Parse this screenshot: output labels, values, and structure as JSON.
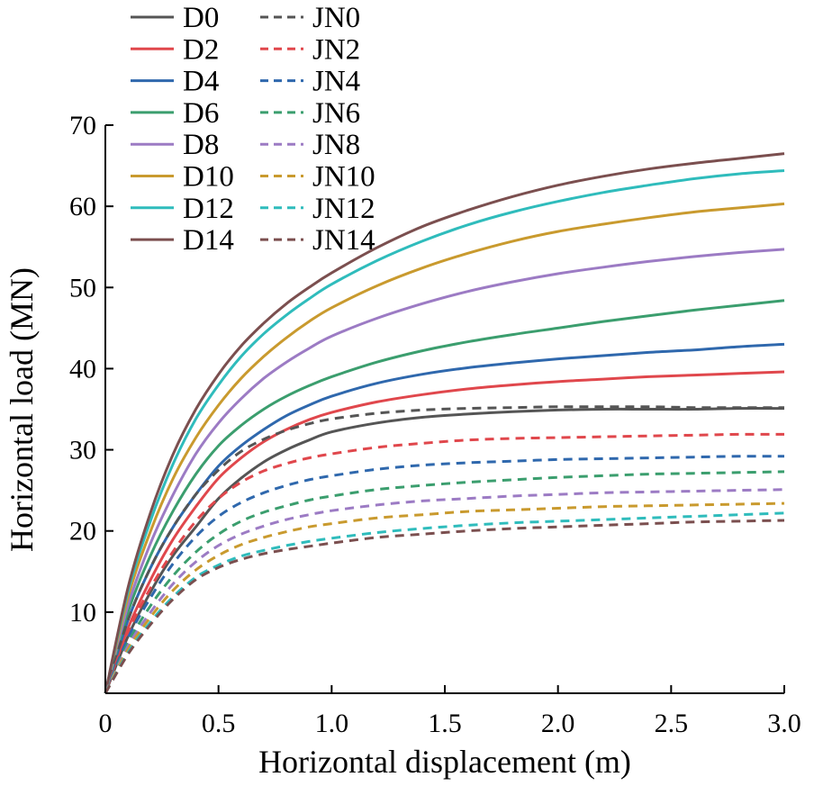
{
  "chart_data": {
    "type": "line",
    "title": "",
    "xlabel": "Horizontal displacement (m)",
    "ylabel": "Horizontal load (MN)",
    "xlim": [
      0,
      3.0
    ],
    "ylim": [
      0,
      70
    ],
    "x_ticks": [
      "0",
      "0.5",
      "1.0",
      "1.5",
      "2.0",
      "2.5",
      "3.0"
    ],
    "y_ticks": [
      "10",
      "20",
      "30",
      "40",
      "50",
      "60",
      "70"
    ],
    "grid": false,
    "legend_position": "top-left",
    "x": [
      0,
      0.1,
      0.2,
      0.3,
      0.4,
      0.5,
      0.6,
      0.7,
      0.8,
      0.9,
      1.0,
      1.2,
      1.4,
      1.6,
      1.8,
      2.0,
      2.2,
      2.4,
      2.6,
      2.8,
      3.0
    ],
    "series": [
      {
        "name": "D0",
        "color": "#555555",
        "dash": "solid",
        "values": [
          0,
          7,
          12.5,
          17,
          20.5,
          24,
          26.5,
          28.5,
          30,
          31.2,
          32.2,
          33.3,
          34.0,
          34.4,
          34.7,
          34.9,
          35.0,
          35.0,
          35.0,
          35.1,
          35.1
        ]
      },
      {
        "name": "D2",
        "color": "#e0474c",
        "dash": "solid",
        "values": [
          0,
          8,
          14,
          19,
          23,
          26.5,
          29,
          31,
          32.5,
          33.7,
          34.6,
          35.9,
          36.8,
          37.5,
          38.0,
          38.4,
          38.7,
          39.0,
          39.2,
          39.4,
          39.6
        ]
      },
      {
        "name": "D4",
        "color": "#2f68ad",
        "dash": "solid",
        "values": [
          0,
          9,
          15.5,
          20.5,
          24.5,
          28,
          30.5,
          32.5,
          34.2,
          35.5,
          36.6,
          38.2,
          39.3,
          40.1,
          40.7,
          41.2,
          41.6,
          42.0,
          42.3,
          42.7,
          43.0
        ]
      },
      {
        "name": "D6",
        "color": "#3b9e6e",
        "dash": "solid",
        "values": [
          0,
          10,
          17,
          22.5,
          27,
          30.5,
          33,
          35,
          36.6,
          37.9,
          39.0,
          40.8,
          42.2,
          43.3,
          44.2,
          45.0,
          45.8,
          46.5,
          47.2,
          47.8,
          48.4
        ]
      },
      {
        "name": "D8",
        "color": "#9c7bc4",
        "dash": "solid",
        "values": [
          0,
          10.8,
          18.5,
          24.5,
          29.5,
          33.3,
          36.3,
          38.8,
          40.8,
          42.5,
          44.0,
          46.2,
          48.0,
          49.5,
          50.7,
          51.7,
          52.5,
          53.2,
          53.8,
          54.3,
          54.7
        ]
      },
      {
        "name": "D10",
        "color": "#c99a2e",
        "dash": "solid",
        "values": [
          0,
          11.8,
          20,
          26.5,
          31.5,
          35.5,
          38.8,
          41.5,
          43.8,
          45.8,
          47.5,
          50.2,
          52.4,
          54.2,
          55.7,
          56.9,
          57.8,
          58.6,
          59.3,
          59.8,
          60.3
        ]
      },
      {
        "name": "D12",
        "color": "#2fbcbc",
        "dash": "solid",
        "values": [
          0,
          12.5,
          21.3,
          28.3,
          33.8,
          38,
          41.5,
          44.3,
          46.6,
          48.6,
          50.4,
          53.3,
          55.7,
          57.7,
          59.3,
          60.6,
          61.7,
          62.6,
          63.4,
          64.0,
          64.4
        ]
      },
      {
        "name": "D14",
        "color": "#7b4f4f",
        "dash": "solid",
        "values": [
          0,
          13,
          22.3,
          29.5,
          35,
          39.3,
          42.8,
          45.6,
          48,
          50,
          51.8,
          54.9,
          57.5,
          59.5,
          61.2,
          62.6,
          63.7,
          64.6,
          65.3,
          65.9,
          66.5
        ]
      },
      {
        "name": "JN0",
        "color": "#555555",
        "dash": "dashed",
        "values": [
          0,
          9,
          15.5,
          20.5,
          24.5,
          27.5,
          29.8,
          31.3,
          32.4,
          33.2,
          33.8,
          34.5,
          34.9,
          35.1,
          35.2,
          35.3,
          35.3,
          35.3,
          35.2,
          35.2,
          35.2
        ]
      },
      {
        "name": "JN2",
        "color": "#e0474c",
        "dash": "dashed",
        "values": [
          0,
          7.5,
          13,
          17.5,
          21.2,
          24,
          26,
          27.4,
          28.3,
          29.0,
          29.5,
          30.3,
          30.8,
          31.2,
          31.4,
          31.5,
          31.6,
          31.7,
          31.8,
          31.9,
          31.9
        ]
      },
      {
        "name": "JN4",
        "color": "#2f68ad",
        "dash": "dashed",
        "values": [
          0,
          6.8,
          11.8,
          16,
          19.3,
          21.8,
          23.5,
          24.7,
          25.6,
          26.3,
          26.8,
          27.6,
          28.1,
          28.4,
          28.6,
          28.8,
          28.9,
          29.0,
          29.1,
          29.2,
          29.2
        ]
      },
      {
        "name": "JN6",
        "color": "#3b9e6e",
        "dash": "dashed",
        "values": [
          0,
          6.2,
          10.8,
          14.5,
          17.4,
          19.6,
          21.2,
          22.3,
          23.1,
          23.8,
          24.3,
          25.1,
          25.6,
          26.0,
          26.3,
          26.6,
          26.8,
          27.0,
          27.1,
          27.2,
          27.3
        ]
      },
      {
        "name": "JN8",
        "color": "#9c7bc4",
        "dash": "dashed",
        "values": [
          0,
          5.8,
          10,
          13.5,
          16.2,
          18.2,
          19.6,
          20.6,
          21.4,
          22.0,
          22.5,
          23.2,
          23.7,
          24.0,
          24.3,
          24.5,
          24.7,
          24.8,
          24.9,
          25.0,
          25.1
        ]
      },
      {
        "name": "JN10",
        "color": "#c99a2e",
        "dash": "dashed",
        "values": [
          0,
          5.4,
          9.4,
          12.7,
          15.2,
          17,
          18.3,
          19.2,
          19.9,
          20.5,
          20.9,
          21.6,
          22.0,
          22.4,
          22.6,
          22.8,
          23.0,
          23.1,
          23.2,
          23.3,
          23.4
        ]
      },
      {
        "name": "JN12",
        "color": "#2fbcbc",
        "dash": "dashed",
        "values": [
          0,
          5,
          8.8,
          11.9,
          14.3,
          15.8,
          16.9,
          17.6,
          18.2,
          18.7,
          19.1,
          19.8,
          20.3,
          20.7,
          21.0,
          21.2,
          21.4,
          21.6,
          21.8,
          22.0,
          22.2
        ]
      },
      {
        "name": "JN14",
        "color": "#7b4f4f",
        "dash": "dashed",
        "values": [
          0,
          4.8,
          8.5,
          11.6,
          14,
          15.5,
          16.5,
          17.2,
          17.7,
          18.1,
          18.5,
          19.2,
          19.6,
          20.0,
          20.3,
          20.5,
          20.7,
          20.9,
          21.1,
          21.2,
          21.3
        ]
      }
    ]
  }
}
